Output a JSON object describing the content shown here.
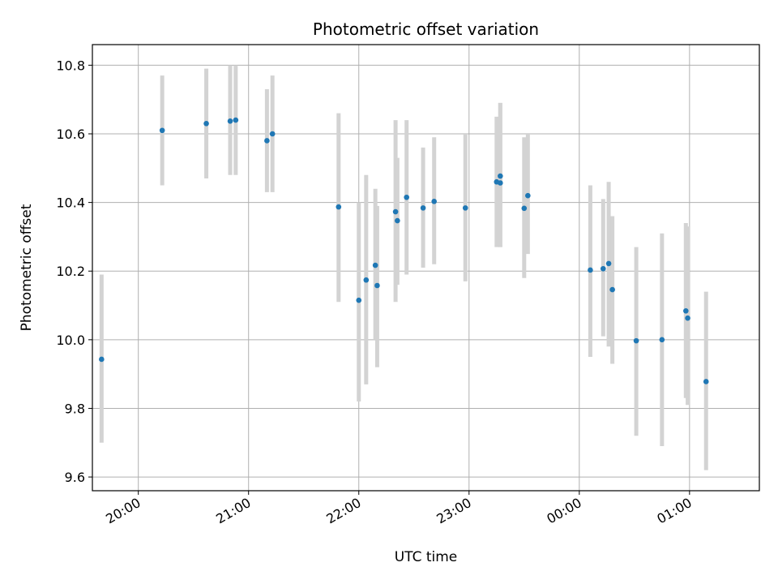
{
  "chart_data": {
    "type": "scatter",
    "title": "Photometric offset variation",
    "xlabel": "UTC time",
    "ylabel": "Photometric offset",
    "x_axis_kind": "time",
    "xlim": [
      "19:35",
      "01:38"
    ],
    "ylim": [
      9.56,
      10.86
    ],
    "xticks": [
      "20:00",
      "21:00",
      "22:00",
      "23:00",
      "00:00",
      "01:00"
    ],
    "yticks": [
      "9.6",
      "9.8",
      "10.0",
      "10.2",
      "10.4",
      "10.6",
      "10.8"
    ],
    "grid": true,
    "legend": "none",
    "marker_color": "#1f77b4",
    "errorbar_color": "#d3d3d3",
    "series": [
      {
        "points": [
          {
            "x": "19:40",
            "y": 9.943,
            "ylow": 9.7,
            "yhigh": 10.19
          },
          {
            "x": "20:13",
            "y": 10.61,
            "ylow": 10.45,
            "yhigh": 10.77
          },
          {
            "x": "20:37",
            "y": 10.63,
            "ylow": 10.47,
            "yhigh": 10.79
          },
          {
            "x": "20:50",
            "y": 10.637,
            "ylow": 10.48,
            "yhigh": 10.8
          },
          {
            "x": "20:53",
            "y": 10.64,
            "ylow": 10.48,
            "yhigh": 10.8
          },
          {
            "x": "21:10",
            "y": 10.58,
            "ylow": 10.43,
            "yhigh": 10.73
          },
          {
            "x": "21:13",
            "y": 10.6,
            "ylow": 10.43,
            "yhigh": 10.77
          },
          {
            "x": "21:49",
            "y": 10.387,
            "ylow": 10.11,
            "yhigh": 10.66
          },
          {
            "x": "22:00",
            "y": 10.115,
            "ylow": 9.82,
            "yhigh": 10.4
          },
          {
            "x": "22:04",
            "y": 10.174,
            "ylow": 9.87,
            "yhigh": 10.48
          },
          {
            "x": "22:09",
            "y": 10.217,
            "ylow": 10.0,
            "yhigh": 10.44
          },
          {
            "x": "22:10",
            "y": 10.158,
            "ylow": 9.92,
            "yhigh": 10.39
          },
          {
            "x": "22:20",
            "y": 10.373,
            "ylow": 10.11,
            "yhigh": 10.64
          },
          {
            "x": "22:21",
            "y": 10.347,
            "ylow": 10.16,
            "yhigh": 10.53
          },
          {
            "x": "22:26",
            "y": 10.415,
            "ylow": 10.19,
            "yhigh": 10.64
          },
          {
            "x": "22:35",
            "y": 10.384,
            "ylow": 10.21,
            "yhigh": 10.56
          },
          {
            "x": "22:41",
            "y": 10.403,
            "ylow": 10.22,
            "yhigh": 10.59
          },
          {
            "x": "22:58",
            "y": 10.384,
            "ylow": 10.17,
            "yhigh": 10.6
          },
          {
            "x": "23:15",
            "y": 10.46,
            "ylow": 10.27,
            "yhigh": 10.65
          },
          {
            "x": "23:17",
            "y": 10.457,
            "ylow": 10.27,
            "yhigh": 10.69
          },
          {
            "x": "23:17",
            "y": 10.477,
            "ylow": 10.27,
            "yhigh": 10.69
          },
          {
            "x": "23:30",
            "y": 10.383,
            "ylow": 10.18,
            "yhigh": 10.59
          },
          {
            "x": "23:32",
            "y": 10.42,
            "ylow": 10.25,
            "yhigh": 10.6
          },
          {
            "x": "00:06",
            "y": 10.203,
            "ylow": 9.95,
            "yhigh": 10.45
          },
          {
            "x": "00:13",
            "y": 10.207,
            "ylow": 10.01,
            "yhigh": 10.41
          },
          {
            "x": "00:16",
            "y": 10.222,
            "ylow": 9.98,
            "yhigh": 10.46
          },
          {
            "x": "00:18",
            "y": 10.146,
            "ylow": 9.93,
            "yhigh": 10.36
          },
          {
            "x": "00:31",
            "y": 9.997,
            "ylow": 9.72,
            "yhigh": 10.27
          },
          {
            "x": "00:45",
            "y": 10.0,
            "ylow": 9.69,
            "yhigh": 10.31
          },
          {
            "x": "00:58",
            "y": 10.084,
            "ylow": 9.83,
            "yhigh": 10.34
          },
          {
            "x": "00:59",
            "y": 10.063,
            "ylow": 9.81,
            "yhigh": 10.33
          },
          {
            "x": "01:09",
            "y": 9.878,
            "ylow": 9.62,
            "yhigh": 10.14
          }
        ]
      }
    ]
  }
}
